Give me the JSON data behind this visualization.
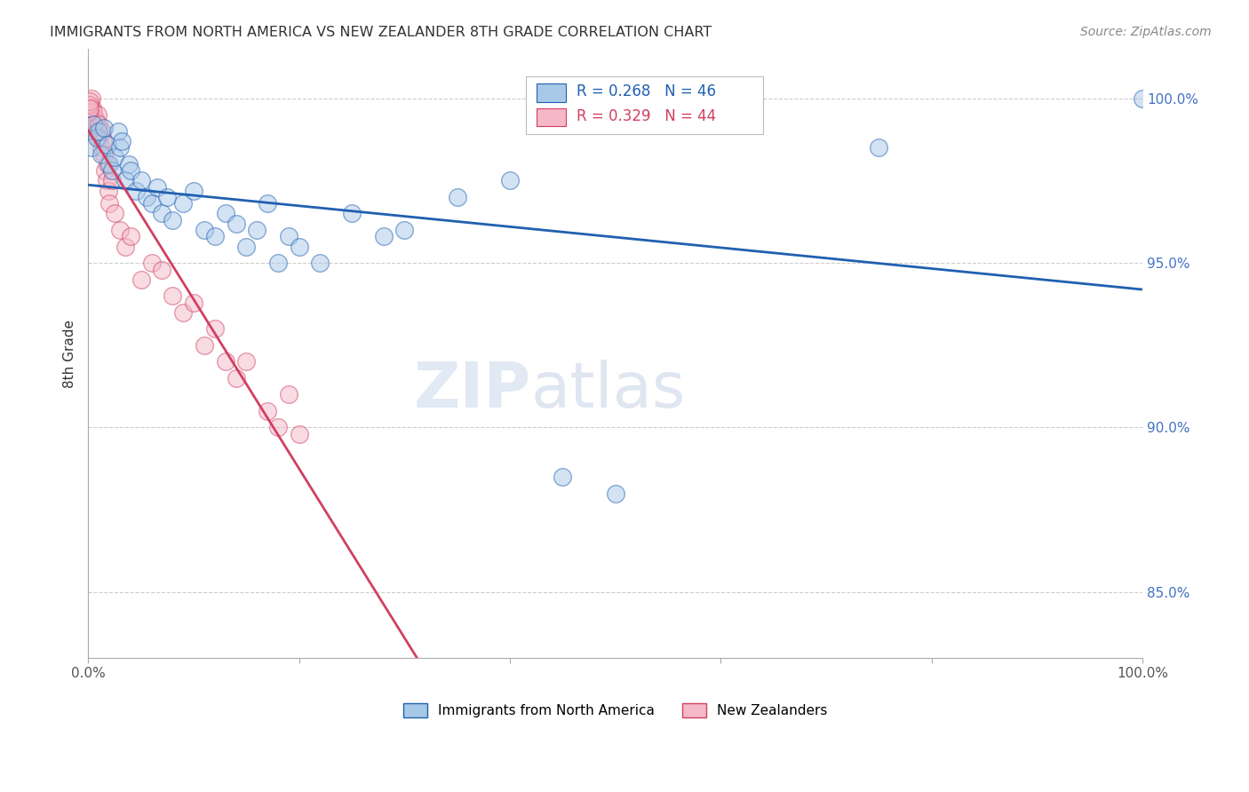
{
  "title": "IMMIGRANTS FROM NORTH AMERICA VS NEW ZEALANDER 8TH GRADE CORRELATION CHART",
  "source": "Source: ZipAtlas.com",
  "ylabel": "8th Grade",
  "legend_blue_label": "Immigrants from North America",
  "legend_pink_label": "New Zealanders",
  "R_blue": 0.268,
  "N_blue": 46,
  "R_pink": 0.329,
  "N_pink": 44,
  "blue_color": "#a8c8e8",
  "pink_color": "#f4b8c8",
  "trend_blue_color": "#2060b0",
  "trend_pink_color": "#d04060",
  "blue_scatter_x": [
    0.3,
    0.5,
    0.8,
    1.0,
    1.2,
    1.5,
    1.8,
    2.0,
    2.2,
    2.5,
    2.8,
    3.0,
    3.2,
    3.5,
    3.8,
    4.0,
    4.5,
    5.0,
    5.5,
    6.0,
    6.5,
    7.0,
    7.5,
    8.0,
    9.0,
    10.0,
    11.0,
    12.0,
    13.0,
    14.0,
    15.0,
    16.0,
    17.0,
    18.0,
    19.0,
    20.0,
    22.0,
    25.0,
    28.0,
    30.0,
    35.0,
    40.0,
    45.0,
    50.0,
    75.0,
    100.0
  ],
  "blue_scatter_y": [
    98.5,
    99.2,
    98.8,
    99.0,
    98.3,
    99.1,
    98.6,
    98.0,
    97.8,
    98.2,
    99.0,
    98.5,
    98.7,
    97.5,
    98.0,
    97.8,
    97.2,
    97.5,
    97.0,
    96.8,
    97.3,
    96.5,
    97.0,
    96.3,
    96.8,
    97.2,
    96.0,
    95.8,
    96.5,
    96.2,
    95.5,
    96.0,
    96.8,
    95.0,
    95.8,
    95.5,
    95.0,
    96.5,
    95.8,
    96.0,
    97.0,
    97.5,
    88.5,
    88.0,
    98.5,
    100.0
  ],
  "pink_scatter_x": [
    0.1,
    0.2,
    0.3,
    0.4,
    0.5,
    0.6,
    0.7,
    0.8,
    0.9,
    1.0,
    1.1,
    1.2,
    1.3,
    1.4,
    1.5,
    1.6,
    1.7,
    1.8,
    1.9,
    2.0,
    2.2,
    2.5,
    3.0,
    3.5,
    4.0,
    5.0,
    6.0,
    7.0,
    8.0,
    9.0,
    10.0,
    11.0,
    12.0,
    13.0,
    14.0,
    15.0,
    17.0,
    18.0,
    19.0,
    20.0,
    0.05,
    0.08,
    0.12,
    0.15
  ],
  "pink_scatter_y": [
    99.8,
    99.5,
    100.0,
    99.7,
    99.6,
    99.4,
    99.3,
    99.0,
    99.5,
    99.2,
    98.8,
    98.5,
    99.0,
    98.7,
    98.3,
    97.8,
    97.5,
    98.0,
    97.2,
    96.8,
    97.5,
    96.5,
    96.0,
    95.5,
    95.8,
    94.5,
    95.0,
    94.8,
    94.0,
    93.5,
    93.8,
    92.5,
    93.0,
    92.0,
    91.5,
    92.0,
    90.5,
    90.0,
    91.0,
    89.8,
    99.6,
    99.8,
    99.9,
    99.7
  ],
  "watermark_zip": "ZIP",
  "watermark_atlas": "atlas",
  "background_color": "#ffffff",
  "grid_color": "#cccccc",
  "axis_color": "#aaaaaa",
  "title_color": "#333333",
  "right_axis_label_color": "#4472c4",
  "source_color": "#888888",
  "ytick_vals": [
    85,
    90,
    95,
    100
  ],
  "ylim_low": 83,
  "ylim_high": 101.5,
  "xlim_low": 0,
  "xlim_high": 100
}
